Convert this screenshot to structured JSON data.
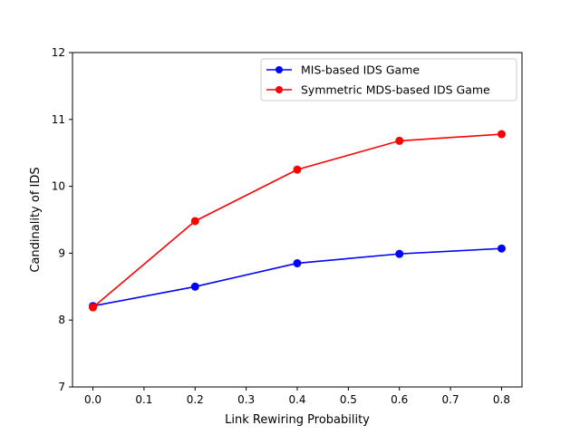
{
  "chart_data": {
    "type": "line",
    "title": "",
    "xlabel": "Link Rewiring Probability",
    "ylabel": "Candinality of IDS",
    "x": [
      0.0,
      0.2,
      0.4,
      0.6,
      0.8
    ],
    "xlim": [
      -0.04,
      0.84
    ],
    "ylim": [
      7,
      12
    ],
    "xticks": [
      0.0,
      0.1,
      0.2,
      0.3,
      0.4,
      0.5,
      0.6,
      0.7,
      0.8
    ],
    "xtick_labels": [
      "0.0",
      "0.1",
      "0.2",
      "0.3",
      "0.4",
      "0.5",
      "0.6",
      "0.7",
      "0.8"
    ],
    "yticks": [
      7,
      8,
      9,
      10,
      11,
      12
    ],
    "ytick_labels": [
      "7",
      "8",
      "9",
      "10",
      "11",
      "12"
    ],
    "grid": false,
    "legend_position": "top-right",
    "series": [
      {
        "name": "MIS-based IDS Game",
        "color": "#0000ff",
        "marker": "circle",
        "values": [
          8.21,
          8.5,
          8.85,
          8.99,
          9.07
        ]
      },
      {
        "name": "Symmetric MDS-based IDS Game",
        "color": "#ff0000",
        "marker": "circle",
        "values": [
          8.19,
          9.48,
          10.25,
          10.68,
          10.78
        ]
      }
    ]
  }
}
